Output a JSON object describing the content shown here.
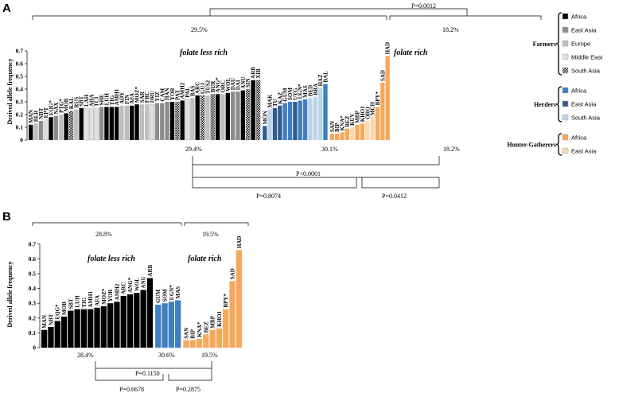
{
  "figure": {
    "panel_a_letter": "A",
    "panel_b_letter": "B"
  },
  "colors": {
    "Farmers|Africa": "#000000",
    "Farmers|East Asia": "#8c8c8c",
    "Farmers|Europe": "#bfbfbf",
    "Farmers|Middle East": "#e0e0e0",
    "Farmers|South Asia": "#ffffff",
    "Herders|Africa": "#3d7fc0",
    "Herders|East Asia": "#2f5d8f",
    "Herders|South Asia": "#bcd3ea",
    "Hunter-Gatherers|Africa": "#f5a85b",
    "Hunter-Gatherers|East Asia": "#fbd7b0"
  },
  "legend": {
    "groups": [
      {
        "name": "Farmers",
        "items": [
          {
            "label": "Africa",
            "key": "Farmers|Africa",
            "pattern": false
          },
          {
            "label": "East Asia",
            "key": "Farmers|East Asia",
            "pattern": false
          },
          {
            "label": "Europe",
            "key": "Farmers|Europe",
            "pattern": false
          },
          {
            "label": "Middle East",
            "key": "Farmers|Middle East",
            "pattern": false
          },
          {
            "label": "South Asia",
            "key": "Farmers|South Asia",
            "pattern": true
          }
        ]
      },
      {
        "name": "Herders",
        "items": [
          {
            "label": "Africa",
            "key": "Herders|Africa",
            "pattern": false
          },
          {
            "label": "East Asia",
            "key": "Herders|East Asia",
            "pattern": false
          },
          {
            "label": "South Asia",
            "key": "Herders|South Asia",
            "pattern": false
          }
        ]
      },
      {
        "name": "Hunter-Gatherers",
        "items": [
          {
            "label": "Africa",
            "key": "Hunter-Gatherers|Africa",
            "pattern": false
          },
          {
            "label": "East Asia",
            "key": "Hunter-Gatherers|East Asia",
            "pattern": false
          }
        ]
      }
    ]
  },
  "chart_data": [
    {
      "panel": "A",
      "type": "bar",
      "ylabel": "Derived allele frequency",
      "ylim": [
        0,
        0.7
      ],
      "yticks": [
        "0",
        "0.1",
        "0.2",
        "0.3",
        "0.4",
        "0.5",
        "0.6",
        "0.7"
      ],
      "group_labels": [
        "folate less rich",
        "folate rich"
      ],
      "top_percents": [
        "29.5%",
        "18.2%"
      ],
      "bottom_percents": [
        "29.4%",
        "30.1%",
        "18.2%"
      ],
      "p_values": [
        "P=0.0012",
        "P<0.0001",
        "P=0.8074",
        "P=0.0412"
      ],
      "bars": [
        {
          "label": "MAN",
          "value": 0.12,
          "key": "Farmers|Africa",
          "pattern": false
        },
        {
          "label": "BER",
          "value": 0.13,
          "key": "Farmers|Europe",
          "pattern": false
        },
        {
          "label": "NBT",
          "value": 0.15,
          "key": "Farmers|East Asia",
          "pattern": false
        },
        {
          "label": "EPT",
          "value": 0.16,
          "key": "Farmers|Middle East",
          "pattern": false
        },
        {
          "label": "EQG*",
          "value": 0.18,
          "key": "Farmers|Africa",
          "pattern": false
        },
        {
          "label": "NAX",
          "value": 0.19,
          "key": "Farmers|East Asia",
          "pattern": false
        },
        {
          "label": "PTG*",
          "value": 0.2,
          "key": "Farmers|Europe",
          "pattern": false
        },
        {
          "label": "MOB",
          "value": 0.21,
          "key": "Farmers|Africa",
          "pattern": false
        },
        {
          "label": "KAL",
          "value": 0.23,
          "key": "Farmers|South Asia",
          "pattern": true
        },
        {
          "label": "RUS",
          "value": 0.24,
          "key": "Farmers|Europe",
          "pattern": false
        },
        {
          "label": "SBT",
          "value": 0.25,
          "key": "Farmers|Africa",
          "pattern": false
        },
        {
          "label": "LAH",
          "value": 0.25,
          "key": "Farmers|Middle East",
          "pattern": false
        },
        {
          "label": "AHA",
          "value": 0.25,
          "key": "Farmers|Middle East",
          "pattern": false
        },
        {
          "label": "TCI",
          "value": 0.25,
          "key": "Farmers|Middle East",
          "pattern": false
        },
        {
          "label": "SHE",
          "value": 0.26,
          "key": "Farmers|East Asia",
          "pattern": false
        },
        {
          "label": "LUH",
          "value": 0.26,
          "key": "Farmers|Africa",
          "pattern": false
        },
        {
          "label": "TIG",
          "value": 0.26,
          "key": "Farmers|Africa",
          "pattern": false
        },
        {
          "label": "AMH1",
          "value": 0.26,
          "key": "Farmers|Africa",
          "pattern": false
        },
        {
          "label": "ADY",
          "value": 0.27,
          "key": "Farmers|Europe",
          "pattern": false
        },
        {
          "label": "FIN",
          "value": 0.27,
          "key": "Farmers|Europe",
          "pattern": false
        },
        {
          "label": "AFA",
          "value": 0.27,
          "key": "Farmers|Africa",
          "pattern": false
        },
        {
          "label": "MOZ*",
          "value": 0.28,
          "key": "Farmers|Africa",
          "pattern": false
        },
        {
          "label": "SAR",
          "value": 0.28,
          "key": "Farmers|Europe",
          "pattern": false
        },
        {
          "label": "FRC",
          "value": 0.28,
          "key": "Farmers|Europe",
          "pattern": false
        },
        {
          "label": "DRU",
          "value": 0.28,
          "key": "Farmers|Middle East",
          "pattern": false
        },
        {
          "label": "YIZ",
          "value": 0.29,
          "key": "Farmers|East Asia",
          "pattern": false
        },
        {
          "label": "CAM",
          "value": 0.29,
          "key": "Farmers|East Asia",
          "pattern": false
        },
        {
          "label": "HAN",
          "value": 0.3,
          "key": "Farmers|East Asia",
          "pattern": false
        },
        {
          "label": "YOR",
          "value": 0.3,
          "key": "Farmers|Africa",
          "pattern": false
        },
        {
          "label": "PAT",
          "value": 0.3,
          "key": "Farmers|South Asia",
          "pattern": true
        },
        {
          "label": "AMH2",
          "value": 0.31,
          "key": "Farmers|Africa",
          "pattern": false
        },
        {
          "label": "PAL",
          "value": 0.32,
          "key": "Farmers|Middle East",
          "pattern": false
        },
        {
          "label": "BAS",
          "value": 0.33,
          "key": "Farmers|Europe",
          "pattern": false
        },
        {
          "label": "ARC",
          "value": 0.35,
          "key": "Farmers|Africa",
          "pattern": false
        },
        {
          "label": "GUJ",
          "value": 0.35,
          "key": "Farmers|South Asia",
          "pattern": true
        },
        {
          "label": "TUS2",
          "value": 0.35,
          "key": "Farmers|Europe",
          "pattern": false
        },
        {
          "label": "BUR",
          "value": 0.36,
          "key": "Farmers|South Asia",
          "pattern": true
        },
        {
          "label": "ANG*",
          "value": 0.36,
          "key": "Farmers|Africa",
          "pattern": false
        },
        {
          "label": "ORC",
          "value": 0.36,
          "key": "Farmers|Europe",
          "pattern": false
        },
        {
          "label": "WOL",
          "value": 0.37,
          "key": "Farmers|Africa",
          "pattern": false
        },
        {
          "label": "DAU",
          "value": 0.38,
          "key": "Farmers|East Asia",
          "pattern": false
        },
        {
          "label": "DAI",
          "value": 0.38,
          "key": "Farmers|East Asia",
          "pattern": false
        },
        {
          "label": "ANU",
          "value": 0.39,
          "key": "Farmers|Africa",
          "pattern": false
        },
        {
          "label": "SIN",
          "value": 0.4,
          "key": "Farmers|South Asia",
          "pattern": true
        },
        {
          "label": "ARB",
          "value": 0.47,
          "key": "Farmers|Africa",
          "pattern": false
        },
        {
          "label": "XIB",
          "value": 0.47,
          "key": "Farmers|East Asia",
          "pattern": true
        },
        {
          "label": "MON",
          "value": 0.11,
          "key": "Herders|East Asia",
          "pattern": false
        },
        {
          "label": "MAK",
          "value": 0.24,
          "key": "Herders|South Asia",
          "pattern": false
        },
        {
          "label": "TU",
          "value": 0.25,
          "key": "Herders|East Asia",
          "pattern": false
        },
        {
          "label": "KAZ",
          "value": 0.27,
          "key": "Herders|East Asia",
          "pattern": false
        },
        {
          "label": "GUM",
          "value": 0.29,
          "key": "Herders|Africa",
          "pattern": false
        },
        {
          "label": "SOM",
          "value": 0.3,
          "key": "Herders|Africa",
          "pattern": false
        },
        {
          "label": "UYG",
          "value": 0.3,
          "key": "Herders|East Asia",
          "pattern": false
        },
        {
          "label": "UGN*",
          "value": 0.31,
          "key": "Herders|Africa",
          "pattern": false
        },
        {
          "label": "MAS",
          "value": 0.32,
          "key": "Herders|Africa",
          "pattern": false
        },
        {
          "label": "BED",
          "value": 0.33,
          "key": "Herders|South Asia",
          "pattern": false
        },
        {
          "label": "BRA",
          "value": 0.34,
          "key": "Herders|South Asia",
          "pattern": false
        },
        {
          "label": "HAZ",
          "value": 0.41,
          "key": "Herders|South Asia",
          "pattern": false
        },
        {
          "label": "BAL",
          "value": 0.44,
          "key": "Herders|Africa",
          "pattern": false
        },
        {
          "label": "SAN",
          "value": 0.05,
          "key": "Hunter-Gatherers|Africa",
          "pattern": false
        },
        {
          "label": "BIP",
          "value": 0.05,
          "key": "Hunter-Gatherers|Africa",
          "pattern": false
        },
        {
          "label": "KNA*",
          "value": 0.06,
          "key": "Hunter-Gatherers|Africa",
          "pattern": false
        },
        {
          "label": "BEZ",
          "value": 0.09,
          "key": "Hunter-Gatherers|Africa",
          "pattern": false
        },
        {
          "label": "KUV",
          "value": 0.1,
          "key": "Hunter-Gatherers|East Asia",
          "pattern": false
        },
        {
          "label": "MBP",
          "value": 0.12,
          "key": "Hunter-Gatherers|Africa",
          "pattern": false
        },
        {
          "label": "KHO1",
          "value": 0.13,
          "key": "Hunter-Gatherers|Africa",
          "pattern": false
        },
        {
          "label": "ORO",
          "value": 0.15,
          "key": "Hunter-Gatherers|East Asia",
          "pattern": false
        },
        {
          "label": "MCH",
          "value": 0.18,
          "key": "Hunter-Gatherers|East Asia",
          "pattern": false
        },
        {
          "label": "BPY*",
          "value": 0.26,
          "key": "Hunter-Gatherers|Africa",
          "pattern": false
        },
        {
          "label": "SAD",
          "value": 0.45,
          "key": "Hunter-Gatherers|Africa",
          "pattern": false
        },
        {
          "label": "HAD",
          "value": 0.66,
          "key": "Hunter-Gatherers|Africa",
          "pattern": false
        }
      ]
    },
    {
      "panel": "B",
      "type": "bar",
      "ylabel": "Derived allele frequency",
      "ylim": [
        0,
        0.7
      ],
      "yticks": [
        "0",
        "0.1",
        "0.2",
        "0.3",
        "0.4",
        "0.5",
        "0.6",
        "0.7"
      ],
      "group_labels": [
        "folate less rich",
        "folate rich"
      ],
      "top_percents": [
        "28.8%",
        "19.5%"
      ],
      "bottom_percents": [
        "28.4%",
        "30.6%",
        "19.5%"
      ],
      "p_values": [
        "P=0.1150",
        "P=0.6678",
        "P=0.2875"
      ],
      "bars": [
        {
          "label": "MAN",
          "value": 0.12,
          "key": "Farmers|Africa",
          "pattern": false
        },
        {
          "label": "NBT",
          "value": 0.14,
          "key": "Farmers|Africa",
          "pattern": false
        },
        {
          "label": "EQG*",
          "value": 0.18,
          "key": "Farmers|Africa",
          "pattern": false
        },
        {
          "label": "MOB",
          "value": 0.21,
          "key": "Farmers|Africa",
          "pattern": false
        },
        {
          "label": "SBT",
          "value": 0.25,
          "key": "Farmers|Africa",
          "pattern": false
        },
        {
          "label": "LUH",
          "value": 0.26,
          "key": "Farmers|Africa",
          "pattern": false
        },
        {
          "label": "TIG",
          "value": 0.26,
          "key": "Farmers|Africa",
          "pattern": false
        },
        {
          "label": "AMH1",
          "value": 0.26,
          "key": "Farmers|Africa",
          "pattern": false
        },
        {
          "label": "AFA",
          "value": 0.27,
          "key": "Farmers|Africa",
          "pattern": false
        },
        {
          "label": "MOZ*",
          "value": 0.28,
          "key": "Farmers|Africa",
          "pattern": false
        },
        {
          "label": "YOR",
          "value": 0.3,
          "key": "Farmers|Africa",
          "pattern": false
        },
        {
          "label": "AMH2",
          "value": 0.31,
          "key": "Farmers|Africa",
          "pattern": false
        },
        {
          "label": "ARC",
          "value": 0.35,
          "key": "Farmers|Africa",
          "pattern": false
        },
        {
          "label": "ANG*",
          "value": 0.36,
          "key": "Farmers|Africa",
          "pattern": false
        },
        {
          "label": "WOL",
          "value": 0.37,
          "key": "Farmers|Africa",
          "pattern": false
        },
        {
          "label": "ANU",
          "value": 0.39,
          "key": "Farmers|Africa",
          "pattern": false
        },
        {
          "label": "ARB",
          "value": 0.47,
          "key": "Farmers|Africa",
          "pattern": false
        },
        {
          "label": "GUM",
          "value": 0.29,
          "key": "Herders|Africa",
          "pattern": false
        },
        {
          "label": "SOM",
          "value": 0.3,
          "key": "Herders|Africa",
          "pattern": false
        },
        {
          "label": "UGN*",
          "value": 0.31,
          "key": "Herders|Africa",
          "pattern": false
        },
        {
          "label": "MAS",
          "value": 0.32,
          "key": "Herders|Africa",
          "pattern": false
        },
        {
          "label": "SAN",
          "value": 0.05,
          "key": "Hunter-Gatherers|Africa",
          "pattern": false
        },
        {
          "label": "BIP",
          "value": 0.05,
          "key": "Hunter-Gatherers|Africa",
          "pattern": false
        },
        {
          "label": "KNA*",
          "value": 0.06,
          "key": "Hunter-Gatherers|Africa",
          "pattern": false
        },
        {
          "label": "BEZ",
          "value": 0.09,
          "key": "Hunter-Gatherers|Africa",
          "pattern": false
        },
        {
          "label": "MBP",
          "value": 0.12,
          "key": "Hunter-Gatherers|Africa",
          "pattern": false
        },
        {
          "label": "KHO1",
          "value": 0.13,
          "key": "Hunter-Gatherers|Africa",
          "pattern": false
        },
        {
          "label": "BPY*",
          "value": 0.26,
          "key": "Hunter-Gatherers|Africa",
          "pattern": false
        },
        {
          "label": "SAD",
          "value": 0.45,
          "key": "Hunter-Gatherers|Africa",
          "pattern": false
        },
        {
          "label": "HAD",
          "value": 0.66,
          "key": "Hunter-Gatherers|Africa",
          "pattern": false
        }
      ]
    }
  ]
}
